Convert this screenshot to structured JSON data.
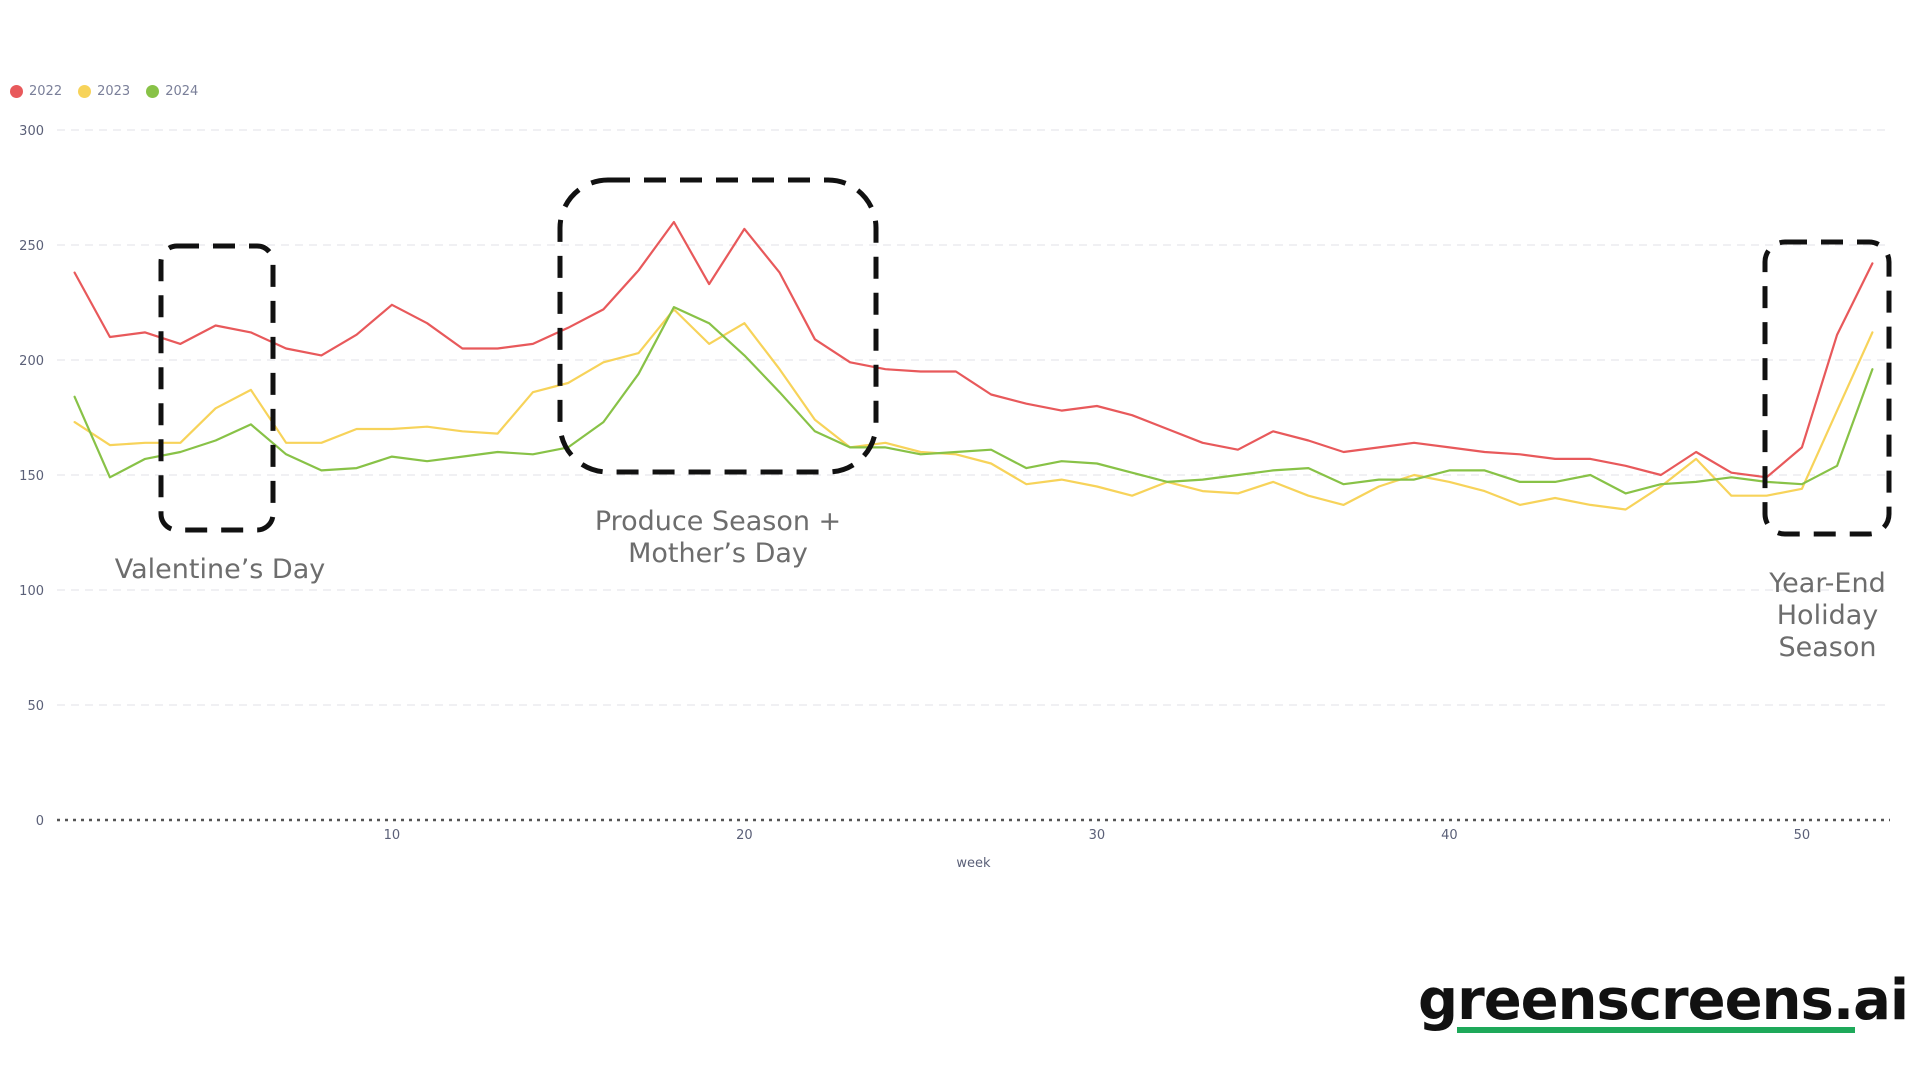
{
  "legend": [
    {
      "label": "2022",
      "color": "#e8595b"
    },
    {
      "label": "2023",
      "color": "#f7d35a"
    },
    {
      "label": "2024",
      "color": "#88c247"
    }
  ],
  "annotations": {
    "valentines": "Valentine’s Day",
    "produce_line1": "Produce Season +",
    "produce_line2": "Mother’s Day",
    "yearend_line1": "Year-End",
    "yearend_line2": "Holiday",
    "yearend_line3": "Season"
  },
  "brand": {
    "text": "greenscreens.ai",
    "underline_color": "#1ea95a"
  },
  "chart_data": {
    "type": "line",
    "xlabel": "week",
    "ylabel": "",
    "x": [
      1,
      2,
      3,
      4,
      5,
      6,
      7,
      8,
      9,
      10,
      11,
      12,
      13,
      14,
      15,
      16,
      17,
      18,
      19,
      20,
      21,
      22,
      23,
      24,
      25,
      26,
      27,
      28,
      29,
      30,
      31,
      32,
      33,
      34,
      35,
      36,
      37,
      38,
      39,
      40,
      41,
      42,
      43,
      44,
      45,
      46,
      47,
      48,
      49,
      50,
      51,
      52
    ],
    "xlim": [
      0.5,
      52.5
    ],
    "xticks": [
      10,
      20,
      30,
      40,
      50
    ],
    "ylim": [
      0,
      300
    ],
    "yticks": [
      0,
      50,
      100,
      150,
      200,
      250,
      300
    ],
    "grid": true,
    "legend_position": "top-left",
    "series": [
      {
        "name": "2022",
        "color": "#e8595b",
        "values": [
          238,
          210,
          212,
          207,
          215,
          212,
          205,
          202,
          211,
          224,
          216,
          205,
          205,
          207,
          214,
          222,
          239,
          260,
          233,
          257,
          238,
          209,
          199,
          196,
          195,
          195,
          185,
          181,
          178,
          180,
          176,
          170,
          164,
          161,
          169,
          165,
          160,
          162,
          164,
          162,
          160,
          159,
          157,
          157,
          154,
          150,
          160,
          151,
          149,
          162,
          211,
          242
        ]
      },
      {
        "name": "2023",
        "color": "#f7d35a",
        "values": [
          173,
          163,
          164,
          164,
          179,
          187,
          164,
          164,
          170,
          170,
          171,
          169,
          168,
          186,
          190,
          199,
          203,
          222,
          207,
          216,
          196,
          174,
          162,
          164,
          160,
          159,
          155,
          146,
          148,
          145,
          141,
          147,
          143,
          142,
          147,
          141,
          137,
          145,
          150,
          147,
          143,
          137,
          140,
          137,
          135,
          145,
          157,
          141,
          141,
          144,
          178,
          212
        ]
      },
      {
        "name": "2024",
        "color": "#88c247",
        "values": [
          184,
          149,
          157,
          160,
          165,
          172,
          159,
          152,
          153,
          158,
          156,
          158,
          160,
          159,
          162,
          173,
          194,
          223,
          216,
          202,
          186,
          169,
          162,
          162,
          159,
          160,
          161,
          153,
          156,
          155,
          151,
          147,
          148,
          150,
          152,
          153,
          146,
          148,
          148,
          152,
          152,
          147,
          147,
          150,
          142,
          146,
          147,
          149,
          147,
          146,
          154,
          196
        ]
      }
    ]
  }
}
